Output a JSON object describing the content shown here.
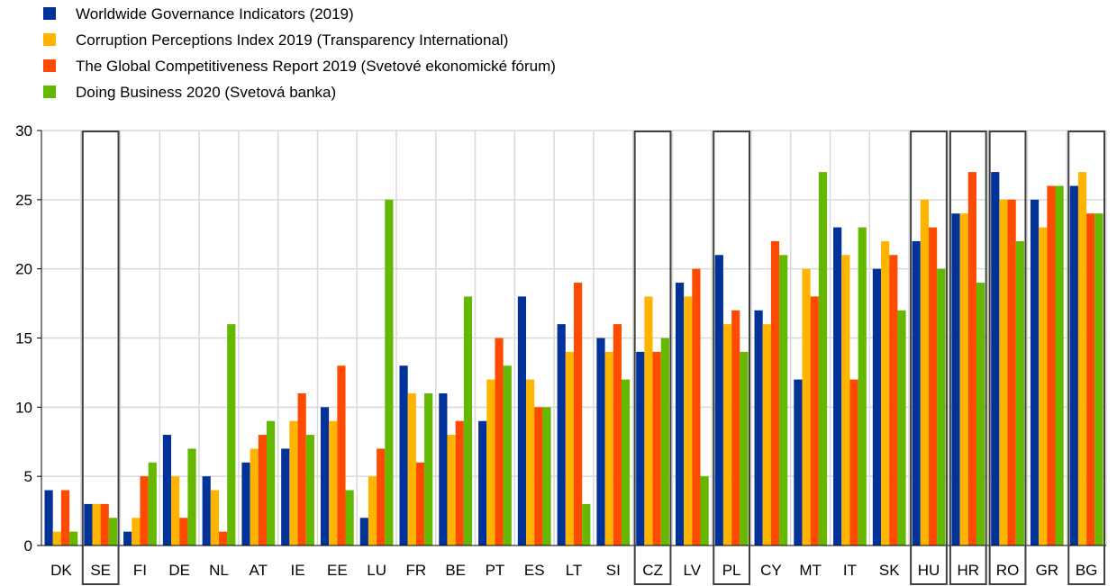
{
  "chart_data": {
    "type": "bar",
    "categories": [
      "DK",
      "SE",
      "FI",
      "DE",
      "NL",
      "AT",
      "IE",
      "EE",
      "LU",
      "FR",
      "BE",
      "PT",
      "ES",
      "LT",
      "SI",
      "CZ",
      "LV",
      "PL",
      "CY",
      "MT",
      "IT",
      "SK",
      "HU",
      "HR",
      "RO",
      "GR",
      "BG"
    ],
    "highlighted_categories": [
      "SE",
      "CZ",
      "PL",
      "HU",
      "HR",
      "RO",
      "BG"
    ],
    "series": [
      {
        "name": "Worldwide Governance Indicators (2019)",
        "color": "#003299",
        "values": [
          4,
          3,
          1,
          8,
          5,
          6,
          7,
          10,
          2,
          13,
          11,
          9,
          18,
          16,
          15,
          14,
          19,
          21,
          17,
          12,
          23,
          20,
          22,
          24,
          27,
          25,
          26
        ]
      },
      {
        "name": "Corruption Perceptions Index 2019 (Transparency International)",
        "color": "#ffb400",
        "values": [
          1,
          3,
          2,
          5,
          4,
          7,
          9,
          9,
          5,
          11,
          8,
          12,
          12,
          14,
          14,
          18,
          18,
          16,
          16,
          20,
          21,
          22,
          25,
          24,
          25,
          23,
          27
        ]
      },
      {
        "name": "The Global Competitiveness Report 2019 (Svetové ekonomické fórum)",
        "color": "#ff4b00",
        "values": [
          4,
          3,
          5,
          2,
          1,
          8,
          11,
          13,
          7,
          6,
          9,
          15,
          10,
          19,
          16,
          14,
          20,
          17,
          22,
          18,
          12,
          21,
          23,
          27,
          25,
          26,
          24
        ]
      },
      {
        "name": "Doing Business 2020 (Svetová banka)",
        "color": "#65b800",
        "values": [
          1,
          2,
          6,
          7,
          16,
          9,
          8,
          4,
          25,
          11,
          18,
          13,
          10,
          3,
          12,
          15,
          5,
          14,
          21,
          27,
          23,
          17,
          20,
          19,
          22,
          26,
          24
        ]
      }
    ],
    "yticks": [
      0,
      5,
      10,
      15,
      20,
      25,
      30
    ],
    "ylim": [
      0,
      30
    ],
    "grid": true,
    "legend_position": "top-left"
  }
}
